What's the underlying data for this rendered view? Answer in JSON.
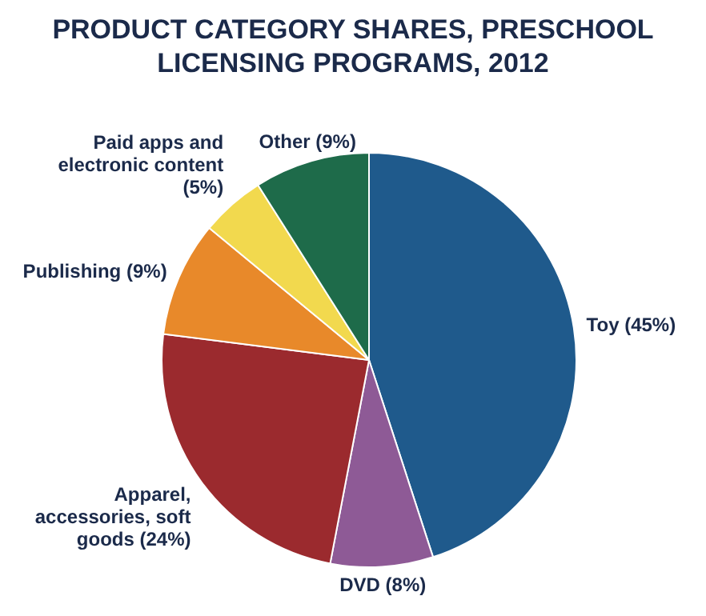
{
  "chart_data": {
    "type": "pie",
    "title": "PRODUCT CATEGORY SHARES, PRESCHOOL LICENSING PROGRAMS, 2012",
    "categories": [
      "Toy",
      "DVD",
      "Apparel, accessories, soft goods",
      "Publishing",
      "Paid apps and electronic content",
      "Other"
    ],
    "values": [
      45,
      8,
      24,
      9,
      5,
      9
    ],
    "value_labels": [
      "(45%)",
      "(8%)",
      "(24%)",
      "(9%)",
      "(5%)",
      "(9%)"
    ],
    "colors": [
      "#1f5a8c",
      "#8e5a96",
      "#9b2a2e",
      "#e8892a",
      "#f2d94e",
      "#1e6b4a"
    ],
    "legend": false
  }
}
